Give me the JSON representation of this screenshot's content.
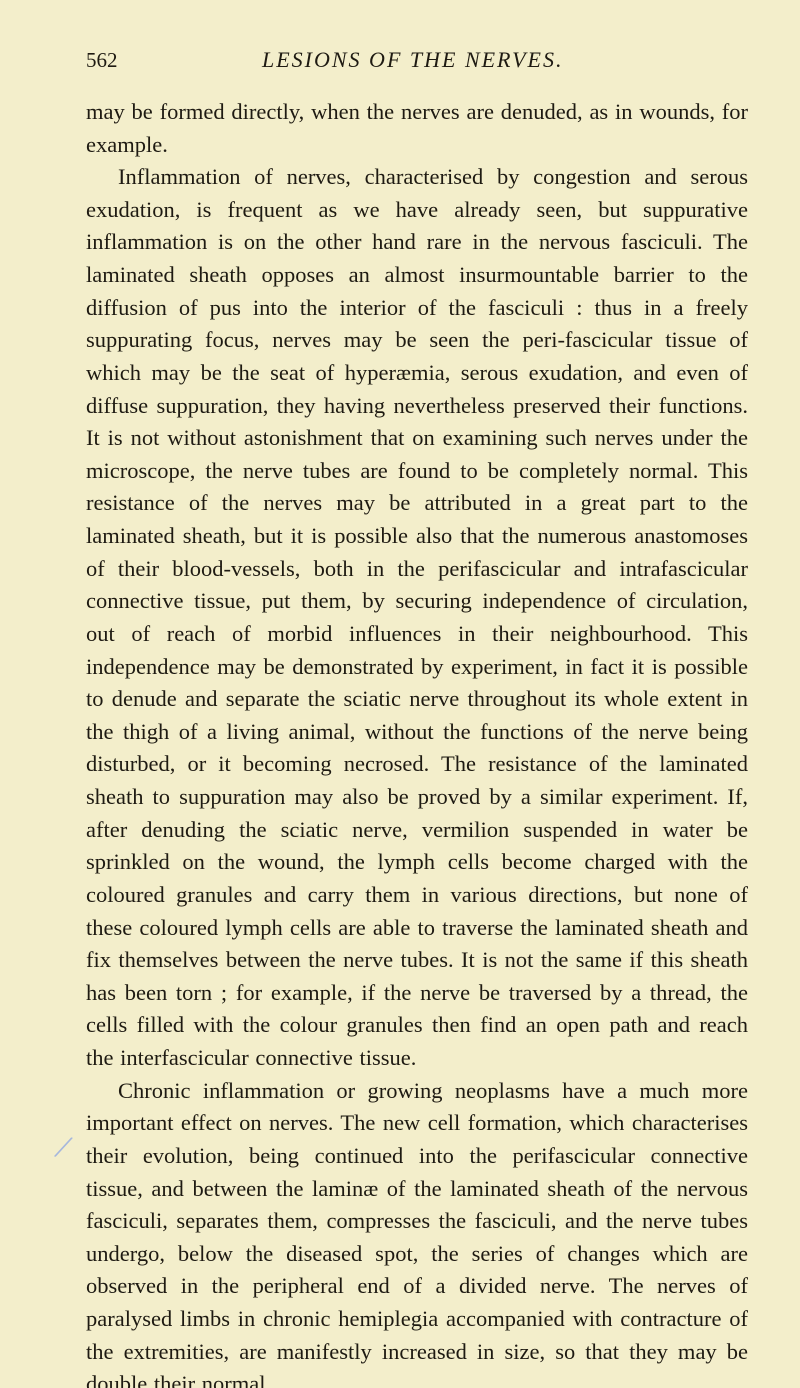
{
  "page": {
    "number": "562",
    "running_title": "LESIONS OF THE NERVES.",
    "background_color": "#f3eecb",
    "text_color": "#1e1a12",
    "annotation_color": "#99aee0",
    "body_fontsize": 22.5,
    "header_fontsize": 22,
    "paragraphs": [
      "may be formed directly, when the nerves are denuded, as in wounds, for example.",
      "Inflammation of nerves, characterised by congestion and serous exudation, is frequent as we have already seen, but suppurative inflammation is on the other hand rare in the nervous fasciculi. The laminated sheath opposes an almost insurmountable barrier to the diffusion of pus into the interior of the fasciculi : thus in a freely suppurating focus, nerves may be seen the peri-fascicular tissue of which may be the seat of hyperæmia, serous exudation, and even of diffuse suppuration, they having nevertheless preserved their functions. It is not without astonishment that on examining such nerves under the microscope, the nerve tubes are found to be completely normal. This resistance of the nerves may be attributed in a great part to the laminated sheath, but it is possible also that the numerous anastomoses of their blood-vessels, both in the perifascicular and intrafascicular connective tissue, put them, by securing independence of circulation, out of reach of morbid influences in their neighbourhood. This independence may be demonstrated by experiment, in fact it is possible to denude and separate the sciatic nerve throughout its whole extent in the thigh of a living animal, without the functions of the nerve being disturbed, or it becoming necrosed. The resistance of the laminated sheath to suppuration may also be proved by a similar experiment. If, after denuding the sciatic nerve, vermilion suspended in water be sprinkled on the wound, the lymph cells become charged with the coloured granules and carry them in various directions, but none of these coloured lymph cells are able to traverse the laminated sheath and fix themselves between the nerve tubes. It is not the same if this sheath has been torn ; for example, if the nerve be traversed by a thread, the cells filled with the colour granules then find an open path and reach the interfascicular connective tissue.",
      "Chronic inflammation or growing neoplasms have a much more important effect on nerves. The new cell formation, which characterises their evolution, being continued into the perifascicular connective tissue, and between the laminæ of the laminated sheath of the nervous fasciculi, separates them, compresses the fasciculi, and the nerve tubes undergo, below the diseased spot, the series of changes which are observed in the peripheral end of a divided nerve. The nerves of paralysed limbs in chronic hemiplegia accompanied with contracture of the extremities, are manifestly increased in size, so that they may be double their normal"
    ],
    "margin_mark": "/"
  }
}
